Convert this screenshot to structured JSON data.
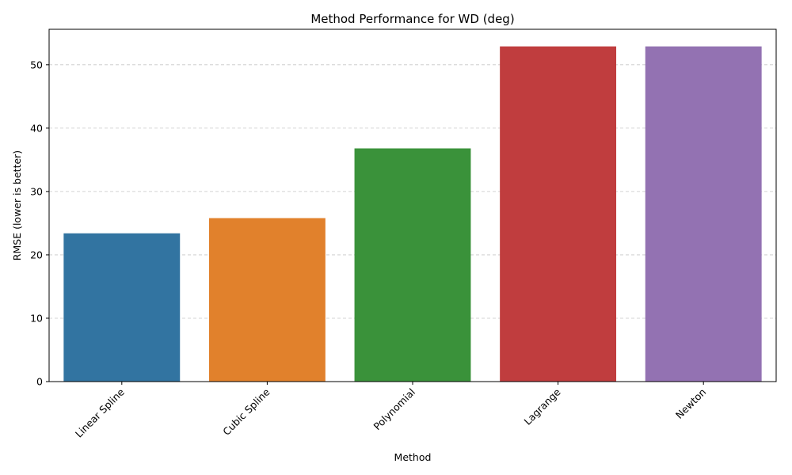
{
  "chart_data": {
    "type": "bar",
    "title": "Method Performance for WD (deg)",
    "xlabel": "Method",
    "ylabel": "RMSE (lower is better)",
    "categories": [
      "Linear Spline",
      "Cubic Spline",
      "Polynomial",
      "Lagrange",
      "Newton"
    ],
    "values": [
      23.4,
      25.8,
      36.8,
      52.9,
      52.9
    ],
    "colors": [
      "#3274a1",
      "#e1812c",
      "#3a923a",
      "#c03d3e",
      "#9372b2"
    ],
    "ylim": [
      0,
      55.6
    ],
    "yticks": [
      0,
      10,
      20,
      30,
      40,
      50
    ],
    "grid": "y-dashed",
    "legend": "none"
  }
}
